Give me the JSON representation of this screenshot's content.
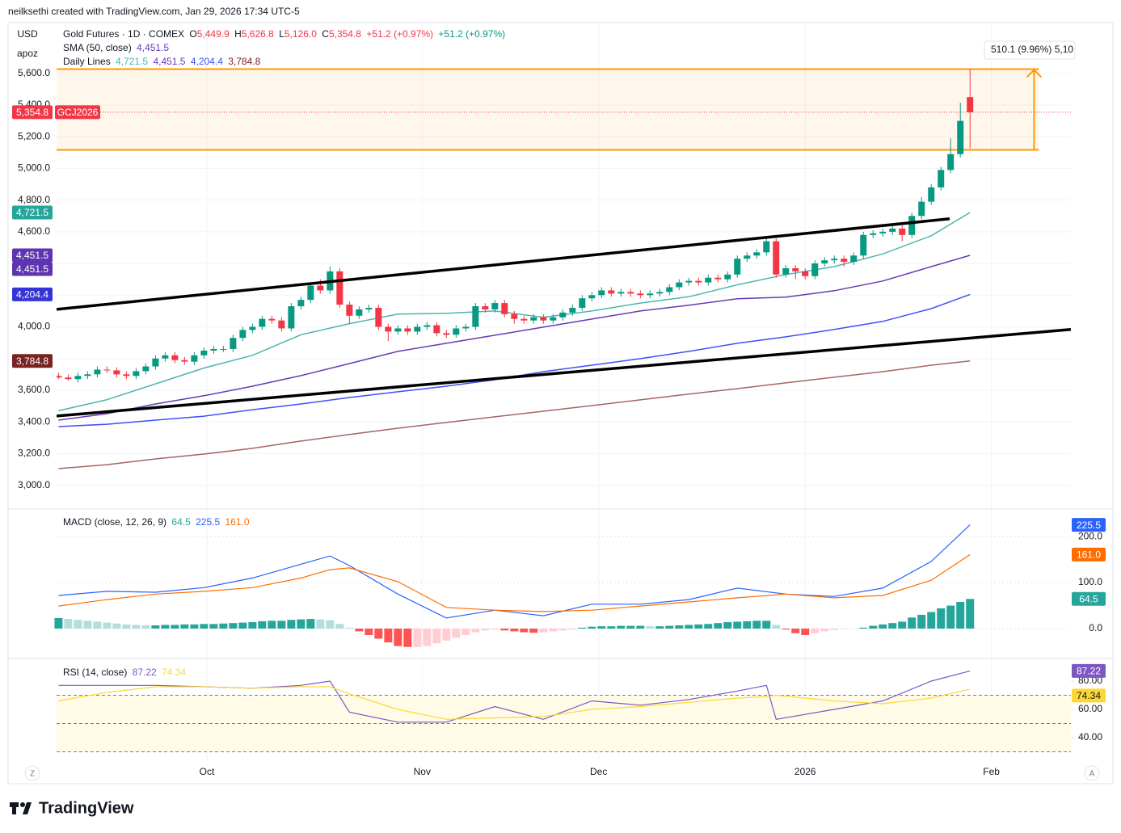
{
  "header": {
    "credit": "neilksethi created with TradingView.com, Jan 29, 2026 17:34 UTC-5"
  },
  "footer": {
    "brand": "TradingView"
  },
  "controls": [
    "Z",
    "A"
  ],
  "chart_data": [
    {
      "type": "candlestick",
      "legend": {
        "symbol": "Gold Futures · 1D · COMEX",
        "ohlc_keys": [
          "O",
          "H",
          "L",
          "C"
        ],
        "ohlc_labels": [
          "5,449.9",
          "5,626.8",
          "5,126.0",
          "5,354.8"
        ],
        "change": "+51.2 (+0.97%)",
        "change_alt": "+51.2 (+0.97%)",
        "sma": "SMA (50, close)",
        "lines": "Daily Lines"
      },
      "symbol_code": "GCJ2026",
      "currency": "USD",
      "unit": "apoz",
      "xlim": [
        -0.2,
        104.4
      ],
      "xticks": [
        {
          "value": 15.3,
          "label": "Oct"
        },
        {
          "value": 37.5,
          "label": "Nov"
        },
        {
          "value": 55.7,
          "label": "Dec"
        },
        {
          "value": 77,
          "label": "2026"
        },
        {
          "value": 96.2,
          "label": "Feb"
        }
      ],
      "ylim": [
        2850,
        5910
      ],
      "yticks": [
        {
          "value": 3000,
          "label": "3,000.0"
        },
        {
          "value": 3200,
          "label": "3,200.0"
        },
        {
          "value": 3400,
          "label": "3,400.0"
        },
        {
          "value": 3600,
          "label": "3,600.0"
        },
        {
          "value": 3800,
          "label": "3,800.0"
        },
        {
          "value": 4000,
          "label": "4,000.0"
        },
        {
          "value": 4200,
          "label": "4,200.0"
        },
        {
          "value": 4400,
          "label": "4,400.0"
        },
        {
          "value": 4600,
          "label": "4,600.0"
        },
        {
          "value": 4800,
          "label": "4,800.0"
        },
        {
          "value": 5000,
          "label": "5,000.0"
        },
        {
          "value": 5200,
          "label": "5,200.0"
        },
        {
          "value": 5400,
          "label": "5,400.0"
        },
        {
          "value": 5600,
          "label": "5,600.0"
        }
      ],
      "up_color": "#089981",
      "down_color": "#f23645",
      "open": [
        3690,
        3680,
        3670,
        3690,
        3700,
        3730,
        3725,
        3700,
        3690,
        3720,
        3750,
        3800,
        3820,
        3790,
        3780,
        3820,
        3850,
        3860,
        3860,
        3930,
        3980,
        4000,
        4050,
        4040,
        3990,
        4130,
        4170,
        4260,
        4230,
        4350,
        4140,
        4070,
        4110,
        4120,
        4000,
        3970,
        3990,
        3970,
        4000,
        4010,
        3960,
        3950,
        3990,
        4000,
        4130,
        4110,
        4150,
        4080,
        4050,
        4040,
        4060,
        4040,
        4060,
        4090,
        4120,
        4180,
        4200,
        4230,
        4210,
        4220,
        4210,
        4200,
        4210,
        4220,
        4250,
        4280,
        4290,
        4280,
        4310,
        4300,
        4330,
        4430,
        4450,
        4470,
        4540,
        4330,
        4370,
        4350,
        4320,
        4400,
        4420,
        4430,
        4410,
        4450,
        4580,
        4590,
        4600,
        4620,
        4580,
        4700,
        4790,
        4880,
        4990,
        5090,
        5449.9
      ],
      "high": [
        3710,
        3700,
        3710,
        3720,
        3750,
        3750,
        3745,
        3720,
        3740,
        3770,
        3820,
        3840,
        3840,
        3810,
        3840,
        3870,
        3880,
        3880,
        3950,
        4000,
        4020,
        4070,
        4070,
        4060,
        4150,
        4190,
        4280,
        4300,
        4380,
        4370,
        4160,
        4130,
        4140,
        4140,
        4020,
        4010,
        4010,
        4020,
        4030,
        4030,
        3980,
        4010,
        4020,
        4150,
        4150,
        4170,
        4170,
        4100,
        4070,
        4080,
        4080,
        4080,
        4110,
        4140,
        4200,
        4220,
        4250,
        4250,
        4240,
        4240,
        4230,
        4230,
        4240,
        4270,
        4300,
        4310,
        4310,
        4330,
        4330,
        4350,
        4450,
        4470,
        4490,
        4560,
        4560,
        4390,
        4390,
        4370,
        4420,
        4440,
        4450,
        4450,
        4470,
        4600,
        4610,
        4620,
        4640,
        4640,
        4720,
        4820,
        4900,
        5010,
        5190,
        5415,
        5626.8
      ],
      "low": [
        3670,
        3660,
        3650,
        3670,
        3680,
        3710,
        3680,
        3670,
        3670,
        3700,
        3730,
        3780,
        3770,
        3760,
        3760,
        3800,
        3830,
        3840,
        3840,
        3910,
        3960,
        3980,
        4020,
        3970,
        3970,
        4110,
        4150,
        4210,
        4210,
        4120,
        4020,
        4050,
        4090,
        3980,
        3910,
        3950,
        3950,
        3950,
        3980,
        3940,
        3930,
        3930,
        3970,
        3980,
        4090,
        4090,
        4060,
        4020,
        4020,
        4020,
        4020,
        4020,
        4040,
        4070,
        4100,
        4160,
        4180,
        4190,
        4190,
        4190,
        4180,
        4180,
        4190,
        4200,
        4230,
        4260,
        4260,
        4260,
        4280,
        4280,
        4310,
        4410,
        4430,
        4450,
        4310,
        4310,
        4300,
        4300,
        4300,
        4380,
        4400,
        4380,
        4390,
        4430,
        4560,
        4570,
        4580,
        4540,
        4560,
        4680,
        4770,
        4860,
        4970,
        5070,
        5126
      ],
      "close": [
        3680,
        3670,
        3690,
        3700,
        3730,
        3725,
        3700,
        3690,
        3720,
        3750,
        3800,
        3820,
        3790,
        3780,
        3820,
        3850,
        3860,
        3860,
        3930,
        3980,
        4000,
        4050,
        4040,
        3990,
        4130,
        4170,
        4260,
        4230,
        4350,
        4140,
        4070,
        4110,
        4120,
        4000,
        3970,
        3990,
        3970,
        4000,
        4010,
        3960,
        3950,
        3990,
        4000,
        4130,
        4110,
        4150,
        4080,
        4050,
        4040,
        4060,
        4040,
        4060,
        4090,
        4120,
        4180,
        4200,
        4230,
        4210,
        4220,
        4210,
        4200,
        4210,
        4220,
        4250,
        4280,
        4290,
        4280,
        4310,
        4300,
        4330,
        4430,
        4450,
        4470,
        4540,
        4330,
        4370,
        4350,
        4320,
        4400,
        4420,
        4430,
        4410,
        4450,
        4580,
        4590,
        4600,
        4620,
        4580,
        4700,
        4790,
        4880,
        4990,
        5090,
        5300,
        5354.8
      ],
      "series": [
        {
          "color": "#4db6ac",
          "badge_color": "#26a69a",
          "x": [
            0,
            5,
            10,
            15,
            20,
            25,
            30,
            35,
            40,
            45,
            50,
            55,
            60,
            65,
            70,
            75,
            80,
            85,
            90,
            94
          ],
          "values": [
            3470,
            3540,
            3640,
            3740,
            3820,
            3950,
            4020,
            4080,
            4085,
            4100,
            4060,
            4100,
            4150,
            4190,
            4265,
            4330,
            4380,
            4460,
            4575,
            4721.5
          ],
          "last_label": "4,721.5"
        },
        {
          "color": "#673ab7",
          "badge_color": "#5e35b1",
          "badge_count": 2,
          "x": [
            0,
            5,
            10,
            15,
            20,
            25,
            30,
            35,
            40,
            45,
            50,
            55,
            60,
            65,
            70,
            75,
            80,
            85,
            90,
            94
          ],
          "values": [
            3411,
            3452,
            3513,
            3565,
            3625,
            3692,
            3768,
            3845,
            3896,
            3947,
            3998,
            4049,
            4100,
            4136,
            4177,
            4187,
            4228,
            4289,
            4380,
            4451.5
          ],
          "last_label": "4,451.5"
        },
        {
          "color": "#3f51f5",
          "badge_color": "#3535d6",
          "x": [
            0,
            5,
            10,
            15,
            20,
            25,
            30,
            35,
            40,
            45,
            50,
            55,
            60,
            65,
            70,
            75,
            80,
            85,
            90,
            94
          ],
          "values": [
            3370,
            3385,
            3411,
            3436,
            3477,
            3513,
            3554,
            3590,
            3625,
            3666,
            3717,
            3758,
            3799,
            3845,
            3896,
            3937,
            3983,
            4034,
            4115,
            4204.4
          ],
          "last_label": "4,204.4"
        },
        {
          "color": "#a86464",
          "badge_color": "#7b2323",
          "x": [
            0,
            5,
            10,
            15,
            20,
            25,
            30,
            35,
            40,
            45,
            50,
            55,
            60,
            65,
            70,
            75,
            80,
            85,
            90,
            94
          ],
          "values": [
            3105,
            3130,
            3166,
            3197,
            3233,
            3279,
            3320,
            3360,
            3396,
            3432,
            3467,
            3503,
            3539,
            3575,
            3610,
            3646,
            3682,
            3717,
            3758,
            3784.8
          ],
          "last_label": "3,784.8"
        }
      ],
      "trendlines": [
        {
          "x": [
            -0.2,
            91.9
          ],
          "values": [
            4110,
            4682
          ]
        },
        {
          "x": [
            -0.2,
            104.4
          ],
          "values": [
            3437,
            3983
          ]
        }
      ],
      "trend_color": "#000000",
      "range_box": {
        "x": [
          -0.2,
          101.1
        ],
        "values": [
          5116.7,
          5626.8
        ],
        "label": "510.1 (9.96%) 5,10",
        "color": "#ff9800"
      }
    },
    {
      "type": "macd",
      "title": "MACD (close, 12, 26, 9)",
      "ylim": [
        -65,
        260
      ],
      "yticks": [
        {
          "value": 0,
          "label": "0.0"
        },
        {
          "value": 100,
          "label": "100.0"
        },
        {
          "value": 200,
          "label": "200.0"
        }
      ],
      "histogram": {
        "values": [
          23,
          21,
          19,
          17,
          15,
          13,
          11,
          9,
          8,
          7,
          7,
          8,
          8,
          9,
          9,
          10,
          10,
          11,
          12,
          13,
          14,
          16,
          17,
          17,
          19,
          20,
          21,
          20,
          18,
          10,
          2,
          -6,
          -14,
          -22,
          -30,
          -38,
          -40,
          -40,
          -38,
          -32,
          -26,
          -20,
          -14,
          -8,
          -4,
          -2,
          -4,
          -6,
          -8,
          -9,
          -8,
          -6,
          -4,
          -2,
          2,
          4,
          5,
          5,
          6,
          6,
          6,
          5,
          5,
          6,
          7,
          8,
          9,
          10,
          12,
          14,
          15,
          16,
          17,
          17,
          8,
          -2,
          -10,
          -14,
          -10,
          -6,
          -3,
          -1,
          0,
          2,
          6,
          9,
          12,
          15,
          24,
          30,
          36,
          44,
          50,
          58,
          64.5
        ],
        "last_label": "64.5",
        "colors": [
          "#26a69a",
          "#b2dfdb",
          "#ff5252",
          "#ffcdd2"
        ]
      },
      "series": [
        {
          "color": "#2962ff",
          "x": [
            0,
            5,
            10,
            15,
            20,
            25,
            28,
            30,
            35,
            40,
            45,
            50,
            55,
            60,
            65,
            70,
            75,
            80,
            85,
            90,
            94
          ],
          "values": [
            72,
            81,
            79,
            89,
            110,
            140,
            158,
            137,
            75,
            23,
            40,
            28,
            53,
            53,
            63,
            88,
            75,
            70,
            88,
            146,
            225.5
          ],
          "last_label": "225.5"
        },
        {
          "color": "#ff6d00",
          "x": [
            0,
            5,
            10,
            15,
            20,
            25,
            28,
            30,
            35,
            40,
            45,
            50,
            55,
            60,
            65,
            70,
            75,
            80,
            85,
            90,
            94
          ],
          "values": [
            49,
            63,
            75,
            81,
            89,
            110,
            128,
            132,
            102,
            46,
            40,
            37,
            40,
            49,
            58,
            67,
            75,
            67,
            72,
            105,
            161.0
          ],
          "last_label": "161.0"
        }
      ]
    },
    {
      "type": "rsi",
      "title": "RSI (14, close)",
      "ylim": [
        24.6,
        96
      ],
      "yticks": [
        {
          "value": 40,
          "label": "40.00"
        },
        {
          "value": 60,
          "label": "60.00"
        },
        {
          "value": 80,
          "label": "80.00"
        }
      ],
      "levels": [
        70,
        50,
        30
      ],
      "series": [
        {
          "color": "#7e57c2",
          "badge_text": "#ffffff",
          "x": [
            0,
            5,
            10,
            15,
            20,
            25,
            28,
            30,
            35,
            40,
            45,
            50,
            55,
            60,
            65,
            70,
            73,
            74,
            80,
            85,
            90,
            94
          ],
          "values": [
            77,
            77,
            77,
            76,
            75,
            77,
            80,
            58,
            51,
            51,
            62,
            53,
            66,
            63,
            67,
            73,
            77,
            53,
            60,
            66,
            80,
            87.22
          ],
          "last_label": "87.22"
        },
        {
          "color": "#fdd835",
          "badge_text": "#131722",
          "x": [
            0,
            5,
            10,
            15,
            20,
            25,
            28,
            30,
            35,
            40,
            45,
            50,
            55,
            60,
            65,
            70,
            73,
            74,
            80,
            85,
            90,
            94
          ],
          "values": [
            66,
            72,
            76,
            76,
            75,
            76,
            76,
            71,
            60,
            53,
            54,
            55,
            60,
            62,
            65,
            68,
            69,
            70,
            66,
            64,
            68,
            74.34
          ],
          "last_label": "74.34"
        }
      ]
    }
  ]
}
